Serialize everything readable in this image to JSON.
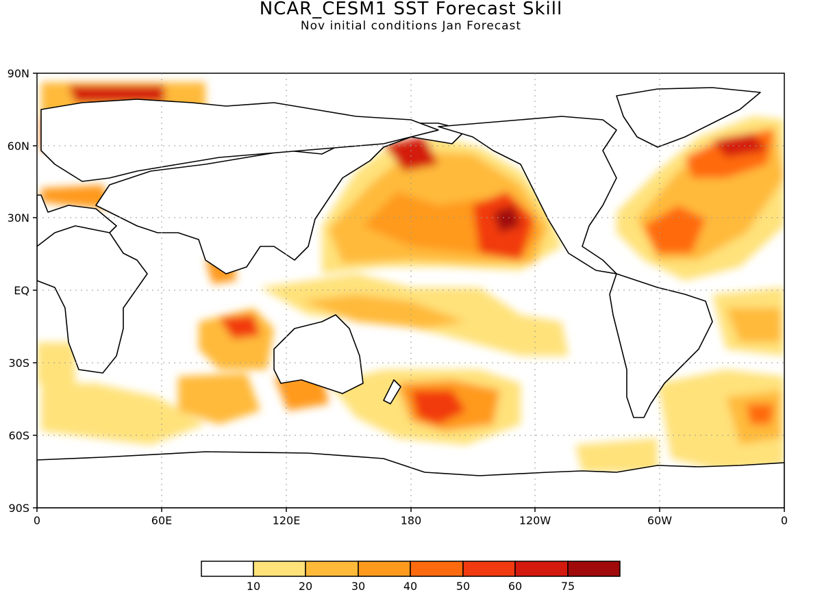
{
  "title": "NCAR_CESM1  SST Forecast Skill",
  "subtitle": "Nov initial conditions  Jan Forecast",
  "map": {
    "lat_labels": [
      "90N",
      "60N",
      "30N",
      "EQ",
      "30S",
      "60S",
      "90S"
    ],
    "lon_labels": [
      "0",
      "60E",
      "120E",
      "180",
      "120W",
      "60W",
      "0"
    ]
  },
  "colorbar": {
    "labels": [
      "10",
      "20",
      "30",
      "40",
      "50",
      "60",
      "75"
    ],
    "colors": [
      "#ffffff",
      "#ffe27a",
      "#ffba3a",
      "#ff9a1c",
      "#ff6a0f",
      "#f23a10",
      "#d41a0e",
      "#a00a0a"
    ]
  }
}
